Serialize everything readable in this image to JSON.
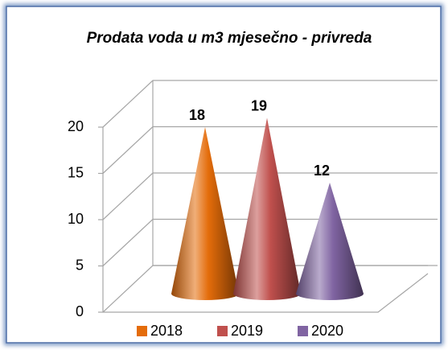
{
  "chart_data": {
    "type": "cone",
    "title": "Prodata voda u m3 mjesečno - privreda",
    "series": [
      {
        "name": "2018",
        "color": "#e46c0a",
        "values": [
          18
        ]
      },
      {
        "name": "2019",
        "color": "#c0504d",
        "values": [
          19
        ]
      },
      {
        "name": "2020",
        "color": "#8064a2",
        "values": [
          12
        ]
      }
    ],
    "ylim": [
      0,
      20
    ],
    "yticks": [
      0,
      5,
      10,
      15,
      20
    ],
    "grid": true,
    "legend": "bottom"
  }
}
